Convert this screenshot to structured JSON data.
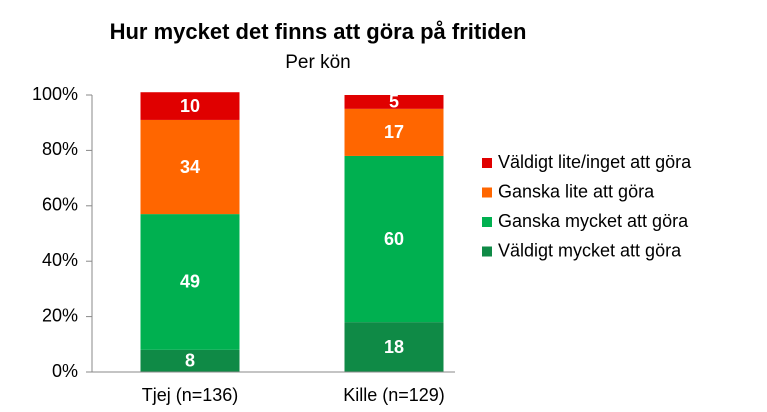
{
  "chart_data": {
    "type": "stacked_bar",
    "title": "Hur mycket det finns att göra på fritiden",
    "subtitle": "Per kön",
    "categories": [
      "Tjej (n=136)",
      "Kille (n=129)"
    ],
    "series": [
      {
        "name": "Väldigt mycket att göra",
        "color": "#0f8a46",
        "values": [
          8,
          18
        ]
      },
      {
        "name": "Ganska mycket att göra",
        "color": "#00b050",
        "values": [
          49,
          60
        ]
      },
      {
        "name": "Ganska lite att göra",
        "color": "#ff6600",
        "values": [
          34,
          17
        ]
      },
      {
        "name": "Väldigt lite/inget att göra",
        "color": "#e00000",
        "values": [
          10,
          5
        ]
      }
    ],
    "ylim": [
      0,
      100
    ],
    "yticks": [
      {
        "value": 0,
        "label": "0%"
      },
      {
        "value": 20,
        "label": "20%"
      },
      {
        "value": 40,
        "label": "40%"
      },
      {
        "value": 60,
        "label": "60%"
      },
      {
        "value": 80,
        "label": "80%"
      },
      {
        "value": 100,
        "label": "100%"
      }
    ],
    "legend": "right"
  }
}
